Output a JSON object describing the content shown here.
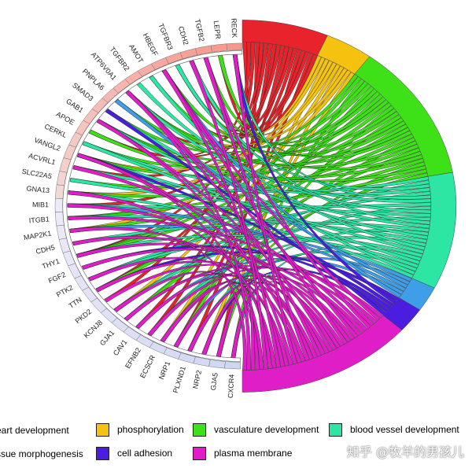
{
  "chart_data": {
    "type": "chord",
    "genes": [
      "RECK",
      "LEPR",
      "TGFB2",
      "CDH2",
      "TGFBR3",
      "HBEGF",
      "AMOT",
      "TGFBR2",
      "ATP6V0A1",
      "PNPLA6",
      "SMAD3",
      "GAB1",
      "APOE",
      "CERKL",
      "VANGL2",
      "ACVRL1",
      "SLC22A5",
      "GNA13",
      "MIB1",
      "ITGB1",
      "MAP2K1",
      "CDH5",
      "THY1",
      "FGF2",
      "PTK2",
      "TTN",
      "PKD2",
      "KCNJ8",
      "GJA1",
      "CAV1",
      "EFNB2",
      "ECSCR",
      "NRP1",
      "PLXND1",
      "NRP2",
      "GJA5",
      "CXCR4"
    ],
    "terms": [
      {
        "name": "heart development",
        "color": "#e8232b",
        "label": "eart development"
      },
      {
        "name": "phosphorylation",
        "color": "#f4c20f",
        "label": "phosphorylation"
      },
      {
        "name": "vasculature development",
        "color": "#3ee018",
        "label": "vasculature development"
      },
      {
        "name": "blood vessel development",
        "color": "#2de6a4",
        "label": "blood vessel development"
      },
      {
        "name": "tissue morphogenesis",
        "color": "#3f9ee8",
        "label": "ssue morphogenesis"
      },
      {
        "name": "cell adhesion",
        "color": "#4b1de0",
        "label": "cell adhesion"
      },
      {
        "name": "plasma membrane",
        "color": "#e01ec8",
        "label": "plasma membrane"
      }
    ],
    "term_sizes": [
      18,
      10,
      33,
      28,
      6,
      6,
      37
    ]
  },
  "watermark": "知乎 @牧羊的男孩儿"
}
